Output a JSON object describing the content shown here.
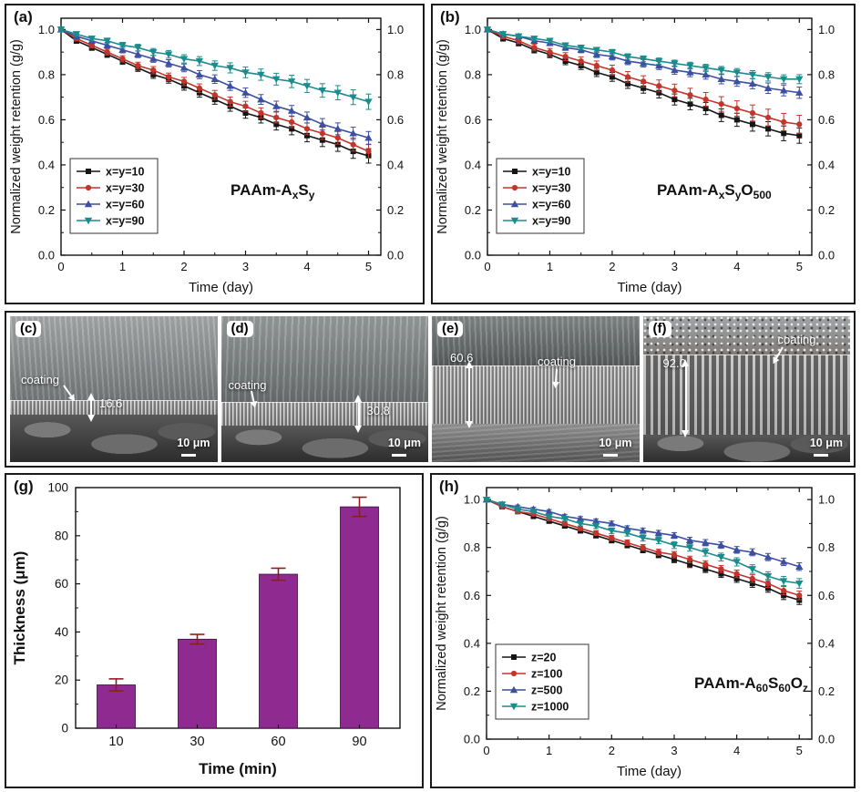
{
  "colors": {
    "series_black": "#151515",
    "series_red": "#c3352b",
    "series_blue": "#3d4fa1",
    "series_teal": "#1b8c8c",
    "bar_purple": "#8f2b90",
    "bar_error": "#8b1f1f",
    "axis": "#111111"
  },
  "chart_data": [
    {
      "id": "a",
      "panel_label": "(a)",
      "type": "line",
      "title": "PAAm-AxSy",
      "title_segments": [
        {
          "t": "PAAm-A"
        },
        {
          "t": "x",
          "sub": true
        },
        {
          "t": "S"
        },
        {
          "t": "y",
          "sub": true
        }
      ],
      "xlabel": "Time (day)",
      "ylabel": "Normalized weight retention (g/g)",
      "xlim": [
        0,
        5.2
      ],
      "ylim": [
        0,
        1.05
      ],
      "xticks": [
        0,
        1,
        2,
        3,
        4,
        5
      ],
      "yticks": [
        0,
        0.2,
        0.4,
        0.6,
        0.8,
        1.0
      ],
      "right_axis_labels": true,
      "x_values": [
        0,
        0.25,
        0.5,
        0.75,
        1,
        1.25,
        1.5,
        1.75,
        2,
        2.25,
        2.5,
        2.75,
        3,
        3.25,
        3.5,
        3.75,
        4,
        4.25,
        4.5,
        4.75,
        5
      ],
      "series": [
        {
          "name": "x=y=10",
          "color": "#151515",
          "marker": "square",
          "err_range": [
            0.01,
            0.032
          ],
          "values": [
            1.0,
            0.95,
            0.92,
            0.89,
            0.86,
            0.83,
            0.8,
            0.78,
            0.75,
            0.72,
            0.69,
            0.66,
            0.63,
            0.61,
            0.58,
            0.56,
            0.53,
            0.51,
            0.49,
            0.46,
            0.44
          ]
        },
        {
          "name": "x=y=30",
          "color": "#c3352b",
          "marker": "circle",
          "err_range": [
            0.01,
            0.03
          ],
          "values": [
            1.0,
            0.96,
            0.93,
            0.9,
            0.87,
            0.84,
            0.82,
            0.79,
            0.77,
            0.74,
            0.71,
            0.68,
            0.66,
            0.63,
            0.61,
            0.59,
            0.56,
            0.54,
            0.52,
            0.49,
            0.46
          ]
        },
        {
          "name": "x=y=60",
          "color": "#3d4fa1",
          "marker": "triangle-up",
          "err_range": [
            0.01,
            0.028
          ],
          "values": [
            1.0,
            0.97,
            0.95,
            0.93,
            0.91,
            0.89,
            0.87,
            0.85,
            0.83,
            0.8,
            0.78,
            0.75,
            0.72,
            0.69,
            0.66,
            0.64,
            0.61,
            0.58,
            0.56,
            0.54,
            0.52
          ]
        },
        {
          "name": "x=y=90",
          "color": "#1b8c8c",
          "marker": "triangle-down",
          "err_range": [
            0.008,
            0.034
          ],
          "values": [
            1.0,
            0.98,
            0.96,
            0.95,
            0.93,
            0.92,
            0.9,
            0.89,
            0.87,
            0.86,
            0.84,
            0.83,
            0.81,
            0.8,
            0.78,
            0.77,
            0.75,
            0.73,
            0.72,
            0.7,
            0.68
          ]
        }
      ]
    },
    {
      "id": "b",
      "panel_label": "(b)",
      "type": "line",
      "title": "PAAm-AxSyO500",
      "title_segments": [
        {
          "t": "PAAm-A"
        },
        {
          "t": "x",
          "sub": true
        },
        {
          "t": "S"
        },
        {
          "t": "y",
          "sub": true
        },
        {
          "t": "O"
        },
        {
          "t": "500",
          "sub": true
        }
      ],
      "xlabel": "Time (day)",
      "ylabel": "Normalized weight retention (g/g)",
      "xlim": [
        0,
        5.2
      ],
      "ylim": [
        0,
        1.05
      ],
      "xticks": [
        0,
        1,
        2,
        3,
        4,
        5
      ],
      "yticks": [
        0,
        0.2,
        0.4,
        0.6,
        0.8,
        1.0
      ],
      "right_axis_labels": true,
      "x_values": [
        0,
        0.25,
        0.5,
        0.75,
        1,
        1.25,
        1.5,
        1.75,
        2,
        2.25,
        2.5,
        2.75,
        3,
        3.25,
        3.5,
        3.75,
        4,
        4.25,
        4.5,
        4.75,
        5
      ],
      "series": [
        {
          "name": "x=y=10",
          "color": "#151515",
          "marker": "square",
          "err_range": [
            0.01,
            0.034
          ],
          "values": [
            1.0,
            0.96,
            0.94,
            0.91,
            0.89,
            0.86,
            0.84,
            0.81,
            0.79,
            0.76,
            0.74,
            0.72,
            0.69,
            0.67,
            0.65,
            0.62,
            0.6,
            0.58,
            0.56,
            0.54,
            0.53
          ]
        },
        {
          "name": "x=y=30",
          "color": "#c3352b",
          "marker": "circle",
          "err_range": [
            0.01,
            0.04
          ],
          "values": [
            1.0,
            0.97,
            0.95,
            0.92,
            0.9,
            0.88,
            0.86,
            0.84,
            0.82,
            0.79,
            0.77,
            0.75,
            0.73,
            0.71,
            0.69,
            0.67,
            0.65,
            0.63,
            0.61,
            0.59,
            0.58
          ]
        },
        {
          "name": "x=y=60",
          "color": "#3d4fa1",
          "marker": "triangle-up",
          "err_range": [
            0.008,
            0.025
          ],
          "values": [
            1.0,
            0.98,
            0.97,
            0.95,
            0.94,
            0.92,
            0.91,
            0.89,
            0.88,
            0.86,
            0.85,
            0.84,
            0.82,
            0.81,
            0.8,
            0.78,
            0.77,
            0.76,
            0.74,
            0.73,
            0.72
          ]
        },
        {
          "name": "x=y=90",
          "color": "#1b8c8c",
          "marker": "triangle-down",
          "err_range": [
            0.006,
            0.02
          ],
          "values": [
            1.0,
            0.98,
            0.97,
            0.96,
            0.95,
            0.93,
            0.92,
            0.91,
            0.9,
            0.88,
            0.87,
            0.86,
            0.85,
            0.84,
            0.83,
            0.82,
            0.81,
            0.8,
            0.79,
            0.78,
            0.78
          ]
        }
      ]
    },
    {
      "id": "g",
      "panel_label": "(g)",
      "type": "bar",
      "xlabel": "Time (min)",
      "ylabel": "Thickness (μm)",
      "categories": [
        "10",
        "30",
        "60",
        "90"
      ],
      "values": [
        18,
        37,
        64,
        92
      ],
      "errors": [
        2.5,
        2.0,
        2.5,
        4.0
      ],
      "yticks": [
        0,
        20,
        40,
        60,
        80,
        100
      ],
      "ylim": [
        0,
        100
      ],
      "bar_color": "#8f2b90",
      "err_color": "#8b1f1f"
    },
    {
      "id": "h",
      "panel_label": "(h)",
      "type": "line",
      "title": "PAAm-A60S60Oz",
      "title_segments": [
        {
          "t": "PAAm-A"
        },
        {
          "t": "60",
          "sub": true
        },
        {
          "t": "S"
        },
        {
          "t": "60",
          "sub": true
        },
        {
          "t": "O"
        },
        {
          "t": "z",
          "sub": true
        }
      ],
      "xlabel": "Time (day)",
      "ylabel": "Normalized weight retention (g/g)",
      "xlim": [
        0,
        5.2
      ],
      "ylim": [
        0,
        1.05
      ],
      "xticks": [
        0,
        1,
        2,
        3,
        4,
        5
      ],
      "yticks": [
        0,
        0.2,
        0.4,
        0.6,
        0.8,
        1.0
      ],
      "right_axis_labels": true,
      "x_values": [
        0,
        0.25,
        0.5,
        0.75,
        1,
        1.25,
        1.5,
        1.75,
        2,
        2.25,
        2.5,
        2.75,
        3,
        3.25,
        3.5,
        3.75,
        4,
        4.25,
        4.5,
        4.75,
        5
      ],
      "series": [
        {
          "name": "z=20",
          "color": "#151515",
          "marker": "square",
          "err_range": [
            0.006,
            0.018
          ],
          "values": [
            1.0,
            0.97,
            0.95,
            0.93,
            0.91,
            0.89,
            0.87,
            0.85,
            0.83,
            0.81,
            0.79,
            0.77,
            0.75,
            0.73,
            0.71,
            0.69,
            0.67,
            0.65,
            0.63,
            0.6,
            0.58
          ]
        },
        {
          "name": "z=100",
          "color": "#c3352b",
          "marker": "circle",
          "err_range": [
            0.006,
            0.018
          ],
          "values": [
            1.0,
            0.97,
            0.95,
            0.94,
            0.92,
            0.9,
            0.88,
            0.86,
            0.84,
            0.82,
            0.8,
            0.78,
            0.77,
            0.75,
            0.73,
            0.71,
            0.69,
            0.67,
            0.65,
            0.62,
            0.6
          ]
        },
        {
          "name": "z=500",
          "color": "#3d4fa1",
          "marker": "triangle-up",
          "err_range": [
            0.006,
            0.016
          ],
          "values": [
            1.0,
            0.98,
            0.97,
            0.96,
            0.95,
            0.93,
            0.92,
            0.91,
            0.9,
            0.88,
            0.87,
            0.86,
            0.85,
            0.83,
            0.82,
            0.81,
            0.79,
            0.78,
            0.76,
            0.74,
            0.72
          ]
        },
        {
          "name": "z=1000",
          "color": "#1b8c8c",
          "marker": "triangle-down",
          "err_range": [
            0.006,
            0.02
          ],
          "values": [
            1.0,
            0.98,
            0.96,
            0.95,
            0.93,
            0.92,
            0.9,
            0.89,
            0.87,
            0.86,
            0.84,
            0.83,
            0.81,
            0.8,
            0.78,
            0.76,
            0.74,
            0.71,
            0.68,
            0.66,
            0.65
          ]
        }
      ]
    }
  ],
  "sem": {
    "panels": [
      {
        "label": "(c)",
        "coating": "coating",
        "measure": "16.6",
        "scale": "10 μm"
      },
      {
        "label": "(d)",
        "coating": "coating",
        "measure": "30.8",
        "scale": "10 μm"
      },
      {
        "label": "(e)",
        "coating": "coating",
        "measure": "60.6",
        "scale": "10 μm"
      },
      {
        "label": "(f)",
        "coating": "coating",
        "measure": "92.0",
        "scale": "10 μm"
      }
    ]
  }
}
